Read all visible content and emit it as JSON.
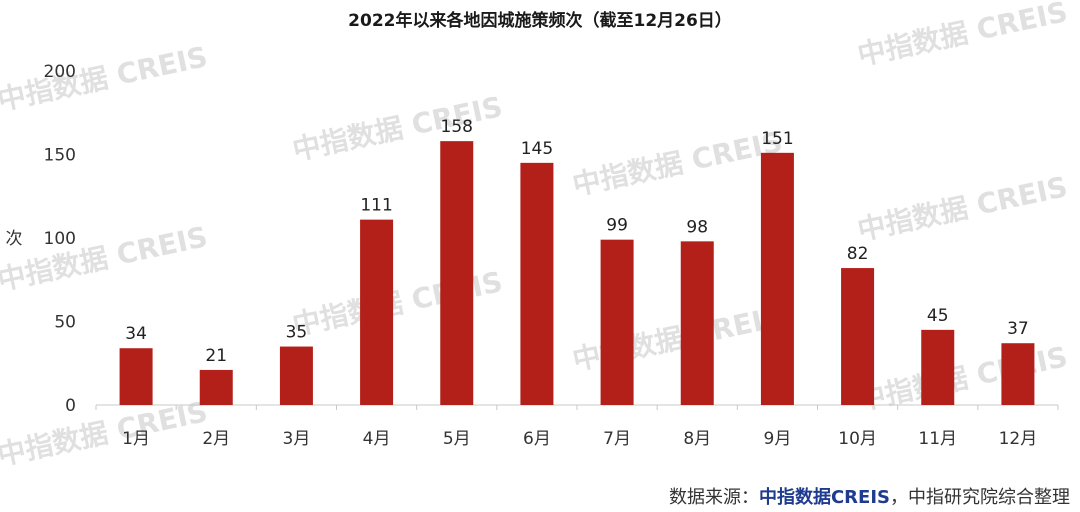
{
  "chart_data": {
    "type": "bar",
    "title": "2022年以来各地因城施策频次（截至12月26日）",
    "ylabel": "次",
    "xlabel": "",
    "ylim": [
      0,
      200
    ],
    "yticks": [
      0,
      50,
      100,
      150,
      200
    ],
    "grid": false,
    "categories": [
      "1月",
      "2月",
      "3月",
      "4月",
      "5月",
      "6月",
      "7月",
      "8月",
      "9月",
      "10月",
      "11月",
      "12月"
    ],
    "values": [
      34,
      21,
      35,
      111,
      158,
      145,
      99,
      98,
      151,
      82,
      45,
      37
    ],
    "bar_color": "#b3201a"
  },
  "source": {
    "prefix": "数据来源：",
    "brand": "中指数据CREIS",
    "suffix": "，中指研究院综合整理"
  },
  "watermark": "中指数据 CREIS"
}
